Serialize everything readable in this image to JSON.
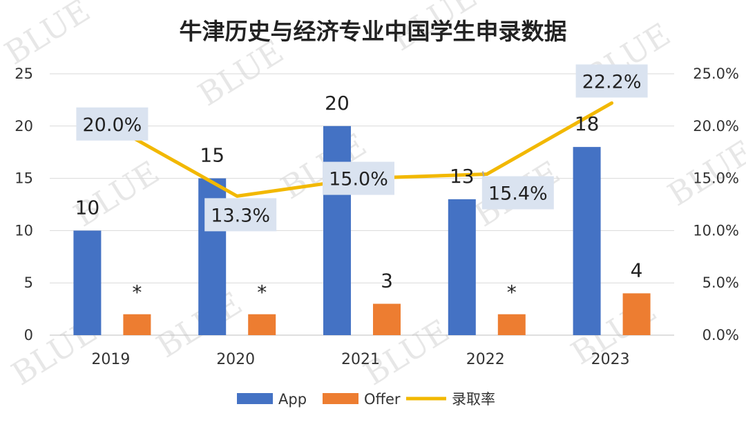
{
  "chart_data": {
    "type": "bar",
    "title": "牛津历史与经济专业中国学生申录数据",
    "categories": [
      "2019",
      "2020",
      "2021",
      "2022",
      "2023"
    ],
    "series": [
      {
        "name": "App",
        "type": "bar",
        "axis": "left",
        "color": "#4472C4",
        "values": [
          10,
          15,
          20,
          13,
          18
        ],
        "labels": [
          "10",
          "15",
          "20",
          "13",
          "18"
        ]
      },
      {
        "name": "Offer",
        "type": "bar",
        "axis": "left",
        "color": "#ED7D31",
        "values": [
          2,
          2,
          3,
          2,
          4
        ],
        "labels": [
          "*",
          "*",
          "3",
          "*",
          "4"
        ]
      },
      {
        "name": "录取率",
        "type": "line",
        "axis": "right",
        "color": "#F2B800",
        "values": [
          20.0,
          13.3,
          15.0,
          15.4,
          22.2
        ],
        "labels": [
          "20.0%",
          "13.3%",
          "15.0%",
          "15.4%",
          "22.2%"
        ]
      }
    ],
    "y_left": {
      "min": 0,
      "max": 25,
      "ticks": [
        "0",
        "5",
        "10",
        "15",
        "20",
        "25"
      ]
    },
    "y_right": {
      "min": 0,
      "max": 25,
      "ticks": [
        "0.0%",
        "5.0%",
        "10.0%",
        "15.0%",
        "20.0%",
        "25.0%"
      ]
    },
    "grid": true,
    "legend_position": "bottom",
    "watermark": "BLUE"
  }
}
